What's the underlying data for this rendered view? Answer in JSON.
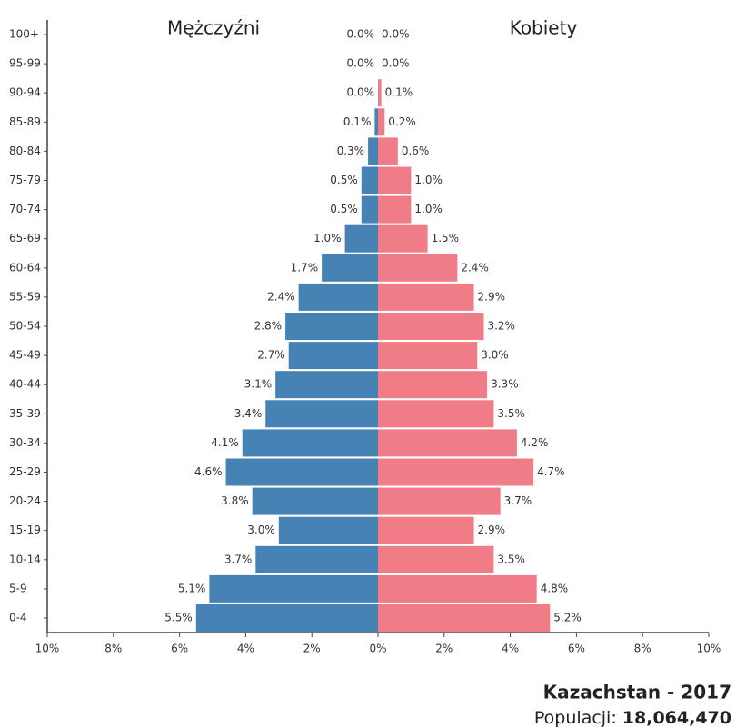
{
  "chart_data": {
    "type": "pyramid",
    "title": "Kazachstan - 2017",
    "population_label": "Populacji:",
    "population": "18,064,470",
    "categories": [
      "0-4",
      "5-9",
      "10-14",
      "15-19",
      "20-24",
      "25-29",
      "30-34",
      "35-39",
      "40-44",
      "45-49",
      "50-54",
      "55-59",
      "60-64",
      "65-69",
      "70-74",
      "75-79",
      "80-84",
      "85-89",
      "90-94",
      "95-99",
      "100+"
    ],
    "series": [
      {
        "name": "Mężczyźni",
        "color": "#4682b4",
        "values": [
          5.5,
          5.1,
          3.7,
          3.0,
          3.8,
          4.6,
          4.1,
          3.4,
          3.1,
          2.7,
          2.8,
          2.4,
          1.7,
          1.0,
          0.5,
          0.5,
          0.3,
          0.1,
          0.0,
          0.0,
          0.0
        ],
        "value_labels": [
          "5.5%",
          "5.1%",
          "3.7%",
          "3.0%",
          "3.8%",
          "4.6%",
          "4.1%",
          "3.4%",
          "3.1%",
          "2.7%",
          "2.8%",
          "2.4%",
          "1.7%",
          "1.0%",
          "0.5%",
          "0.5%",
          "0.3%",
          "0.1%",
          "0.0%",
          "0.0%",
          "0.0%"
        ]
      },
      {
        "name": "Kobiety",
        "color": "#f07c88",
        "values": [
          5.2,
          4.8,
          3.5,
          2.9,
          3.7,
          4.7,
          4.2,
          3.5,
          3.3,
          3.0,
          3.2,
          2.9,
          2.4,
          1.5,
          1.0,
          1.0,
          0.6,
          0.2,
          0.1,
          0.0,
          0.0
        ],
        "value_labels": [
          "5.2%",
          "4.8%",
          "3.5%",
          "2.9%",
          "3.7%",
          "4.7%",
          "4.2%",
          "3.5%",
          "3.3%",
          "3.0%",
          "3.2%",
          "2.9%",
          "2.4%",
          "1.5%",
          "1.0%",
          "1.0%",
          "0.6%",
          "0.2%",
          "0.1%",
          "0.0%",
          "0.0%"
        ]
      }
    ],
    "xlim": [
      -10,
      10
    ],
    "xticks": [
      {
        "value": -10,
        "label": "10%"
      },
      {
        "value": -8,
        "label": "8%"
      },
      {
        "value": -6,
        "label": "6%"
      },
      {
        "value": -4,
        "label": "4%"
      },
      {
        "value": -2,
        "label": "2%"
      },
      {
        "value": 0,
        "label": "0%"
      },
      {
        "value": 2,
        "label": "2%"
      },
      {
        "value": 4,
        "label": "4%"
      },
      {
        "value": 6,
        "label": "6%"
      },
      {
        "value": 8,
        "label": "8%"
      },
      {
        "value": 10,
        "label": "10%"
      }
    ],
    "grid": false
  }
}
